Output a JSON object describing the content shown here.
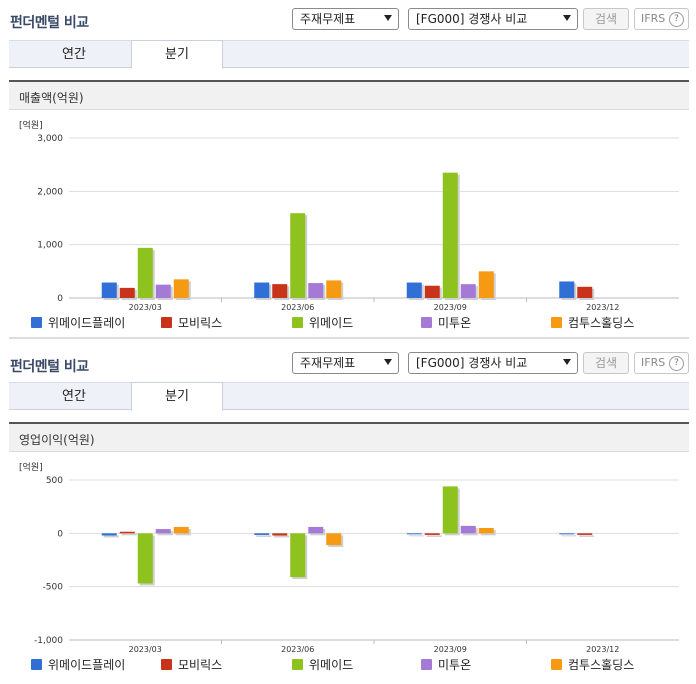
{
  "sections": [
    {
      "title": "펀더멘털 비교",
      "select1": "주재무제표",
      "select2": "[FG000] 경쟁사 비교",
      "search_btn": "검색",
      "ifrs": "IFRS",
      "ifrs_help": "?",
      "tabs": [
        "연간",
        "분기"
      ],
      "active_tab": 1,
      "chart_title": "매출액(억원)",
      "unit": "[억원]"
    },
    {
      "title": "펀더멘털 비교",
      "select1": "주재무제표",
      "select2": "[FG000] 경쟁사 비교",
      "search_btn": "검색",
      "ifrs": "IFRS",
      "ifrs_help": "?",
      "tabs": [
        "연간",
        "분기"
      ],
      "active_tab": 1,
      "chart_title": "영업이익(억원)",
      "unit": "[억원]"
    }
  ],
  "colors": {
    "title": "#3a4a66",
    "series": [
      "#2f6fd6",
      "#c8331b",
      "#8dc21f",
      "#a57ad6",
      "#f59a12"
    ]
  },
  "chart_data": [
    {
      "type": "bar",
      "title": "매출액(억원)",
      "unit": "[억원]",
      "categories": [
        "2023/03",
        "2023/06",
        "2023/09",
        "2023/12"
      ],
      "ylim": [
        0,
        3000
      ],
      "yticks": [
        0,
        1000,
        2000,
        3000
      ],
      "ytick_labels": [
        "0",
        "1,000",
        "2,000",
        "3,000"
      ],
      "grid": true,
      "legend": "bottom",
      "series": [
        {
          "name": "위메이드플레이",
          "values": [
            290,
            290,
            290,
            310
          ]
        },
        {
          "name": "모비릭스",
          "values": [
            190,
            260,
            230,
            210
          ]
        },
        {
          "name": "위메이드",
          "values": [
            940,
            1590,
            2350,
            null
          ]
        },
        {
          "name": "미투온",
          "values": [
            250,
            280,
            260,
            null
          ]
        },
        {
          "name": "컴투스홀딩스",
          "values": [
            350,
            330,
            500,
            null
          ]
        }
      ]
    },
    {
      "type": "bar",
      "title": "영업이익(억원)",
      "unit": "[억원]",
      "categories": [
        "2023/03",
        "2023/06",
        "2023/09",
        "2023/12"
      ],
      "ylim": [
        -1000,
        500
      ],
      "yticks": [
        -1000,
        -500,
        0,
        500
      ],
      "ytick_labels": [
        "-1,000",
        "-500",
        "0",
        "500"
      ],
      "grid": true,
      "legend": "bottom",
      "series": [
        {
          "name": "위메이드플레이",
          "values": [
            -20,
            -15,
            0,
            0
          ]
        },
        {
          "name": "모비릭스",
          "values": [
            15,
            -20,
            -15,
            -15
          ]
        },
        {
          "name": "위메이드",
          "values": [
            -470,
            -410,
            440,
            null
          ]
        },
        {
          "name": "미투온",
          "values": [
            40,
            60,
            70,
            null
          ]
        },
        {
          "name": "컴투스홀딩스",
          "values": [
            60,
            -110,
            50,
            null
          ]
        }
      ]
    }
  ]
}
